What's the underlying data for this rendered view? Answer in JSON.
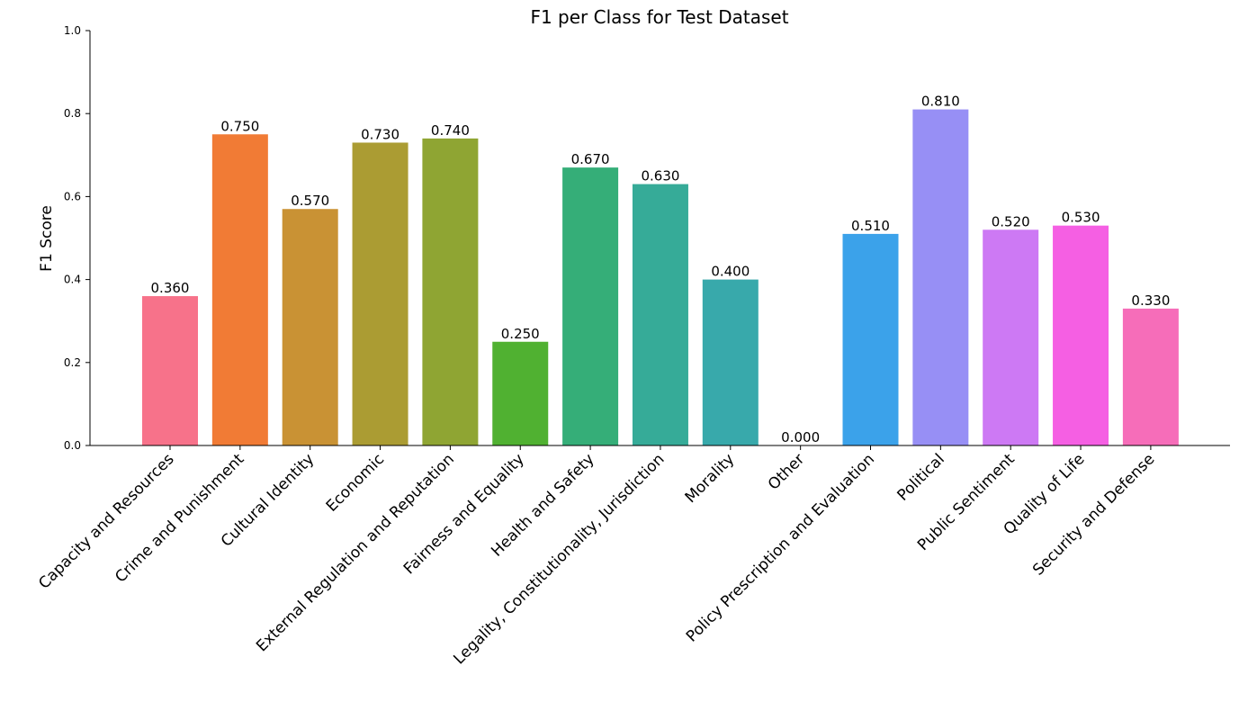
{
  "chart_data": {
    "type": "bar",
    "title": "F1 per Class for Test Dataset",
    "xlabel": "",
    "ylabel": "F1 Score",
    "ylim": [
      0,
      1.0
    ],
    "yticks": [
      "0.0",
      "0.2",
      "0.4",
      "0.6",
      "0.8",
      "1.0"
    ],
    "grid": false,
    "categories": [
      "Capacity and Resources",
      "Crime and Punishment",
      "Cultural Identity",
      "Economic",
      "External Regulation and Reputation",
      "Fairness and Equality",
      "Health and Safety",
      "Legality, Constitutionality, Jurisdiction",
      "Morality",
      "Other",
      "Policy Prescription and Evaluation",
      "Political",
      "Public Sentiment",
      "Quality of Life",
      "Security and Defense"
    ],
    "values": [
      0.36,
      0.75,
      0.57,
      0.73,
      0.74,
      0.25,
      0.67,
      0.63,
      0.4,
      0.0,
      0.51,
      0.81,
      0.52,
      0.53,
      0.33
    ],
    "value_labels": [
      "0.360",
      "0.750",
      "0.570",
      "0.730",
      "0.740",
      "0.250",
      "0.670",
      "0.630",
      "0.400",
      "0.000",
      "0.510",
      "0.810",
      "0.520",
      "0.530",
      "0.330"
    ],
    "colors": [
      "#f7728a",
      "#f17b35",
      "#c99234",
      "#ab9c33",
      "#8fa533",
      "#50b131",
      "#35ae78",
      "#36ab98",
      "#38a9ab",
      "#3aa6be",
      "#3ba2ea",
      "#978ff5",
      "#cd79f4",
      "#f55fe3",
      "#f66db9"
    ]
  }
}
